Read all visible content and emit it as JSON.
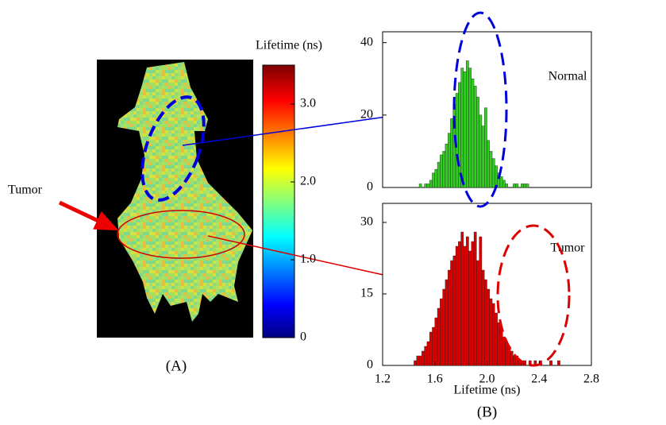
{
  "panel_a": {
    "label": "(A)",
    "annotation": "Tumor",
    "colorbar": {
      "title": "Lifetime (ns)",
      "lim": [
        0,
        3.5
      ],
      "ticks": [
        0,
        {
          "value": 1,
          "label": "1.0"
        },
        {
          "value": 2,
          "label": "2.0"
        },
        {
          "value": 3,
          "label": "3.0"
        }
      ]
    }
  },
  "chart_data": [
    {
      "type": "histogram",
      "annotation": "Normal",
      "color": "#33cc22",
      "bins": [
        1.4,
        1.42,
        1.44,
        1.46,
        1.48,
        1.5,
        1.52,
        1.54,
        1.56,
        1.58,
        1.6,
        1.62,
        1.64,
        1.66,
        1.68,
        1.7,
        1.72,
        1.74,
        1.76,
        1.78,
        1.8,
        1.82,
        1.84,
        1.86,
        1.88,
        1.9,
        1.92,
        1.94,
        1.96,
        1.98,
        2.0,
        2.02,
        2.04,
        2.06,
        2.08,
        2.1,
        2.12,
        2.14,
        2.16,
        2.18,
        2.2,
        2.22,
        2.24,
        2.26,
        2.28,
        2.3,
        2.32,
        2.34,
        2.36,
        2.38,
        2.4,
        2.42,
        2.44,
        2.46,
        2.48,
        2.5,
        2.52,
        2.54,
        2.56,
        2.58,
        2.6
      ],
      "values": [
        0,
        0,
        0,
        0,
        1,
        0,
        1,
        1,
        2,
        4,
        5,
        7,
        9,
        10,
        12,
        15,
        19,
        23,
        26,
        29,
        33,
        32,
        35,
        33,
        30,
        28,
        25,
        20,
        17,
        22,
        13,
        10,
        8,
        6,
        4,
        3,
        2,
        1,
        0,
        0,
        1,
        1,
        0,
        1,
        1,
        1,
        0,
        0,
        0,
        0,
        0,
        0,
        0,
        0,
        0,
        0,
        0,
        0,
        0,
        0
      ],
      "xlim": [
        1.2,
        2.8
      ],
      "ylim": [
        0,
        43
      ],
      "yticks": [
        0,
        20,
        40
      ]
    },
    {
      "type": "histogram",
      "annotation": "Tumor",
      "color": "#dd0000",
      "bins": [
        1.4,
        1.42,
        1.44,
        1.46,
        1.48,
        1.5,
        1.52,
        1.54,
        1.56,
        1.58,
        1.6,
        1.62,
        1.64,
        1.66,
        1.68,
        1.7,
        1.72,
        1.74,
        1.76,
        1.78,
        1.8,
        1.82,
        1.84,
        1.86,
        1.88,
        1.9,
        1.92,
        1.94,
        1.96,
        1.98,
        2.0,
        2.02,
        2.04,
        2.06,
        2.08,
        2.1,
        2.12,
        2.14,
        2.16,
        2.18,
        2.2,
        2.22,
        2.24,
        2.26,
        2.28,
        2.3,
        2.32,
        2.34,
        2.36,
        2.38,
        2.4,
        2.42,
        2.44,
        2.46,
        2.48,
        2.5,
        2.52,
        2.54,
        2.56,
        2.58,
        2.6
      ],
      "values": [
        0,
        0,
        1,
        2,
        2,
        3,
        4,
        5,
        7,
        8,
        10,
        12,
        14,
        16,
        18,
        20,
        22,
        23,
        25,
        26,
        28,
        25,
        27,
        24,
        26,
        28,
        22,
        27,
        20,
        18,
        16,
        14,
        13,
        11,
        9,
        8,
        6,
        5,
        4,
        3,
        2,
        2,
        1,
        1,
        1,
        0,
        1,
        0,
        1,
        0,
        1,
        0,
        0,
        0,
        1,
        0,
        0,
        1,
        0,
        0
      ],
      "xlim": [
        1.2,
        2.8
      ],
      "ylim": [
        0,
        34
      ],
      "yticks": [
        0,
        15,
        30
      ],
      "xticks": [
        {
          "value": 1.2,
          "label": "1.2"
        },
        {
          "value": 1.6,
          "label": "1.6"
        },
        {
          "value": 2.0,
          "label": "2.0"
        },
        {
          "value": 2.4,
          "label": "2.4"
        },
        {
          "value": 2.8,
          "label": "2.8"
        }
      ],
      "x_label": "Lifetime (ns)",
      "panel_label": "(B)"
    }
  ]
}
